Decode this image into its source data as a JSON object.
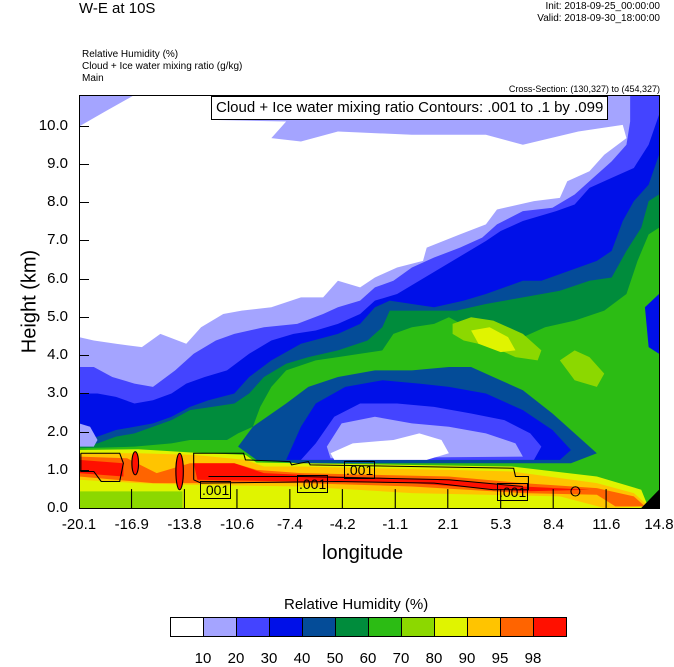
{
  "header": {
    "title": "W-E at 10S",
    "init": "Init: 2018-09-25_00:00:00",
    "valid": "Valid: 2018-09-30_18:00:00",
    "fields": [
      "Relative Humidity   (%)",
      "Cloud + Ice water mixing ratio   (g/kg)",
      "Main"
    ],
    "cross_section": "Cross-Section: (130,327) to (454,327)"
  },
  "chart_data": {
    "type": "contour",
    "title": "W-E at 10S",
    "contour_annotation": "Cloud + Ice water mixing ratio Contours: .001 to .1 by .099",
    "xlabel": "longitude",
    "ylabel": "Height (km)",
    "xlim": [
      -20.1,
      14.8
    ],
    "ylim": [
      0,
      10.8
    ],
    "x_ticks": [
      "-20.1",
      "-16.9",
      "-13.8",
      "-10.6",
      "-7.4",
      "-4.2",
      "-1.1",
      "2.1",
      "5.3",
      "8.4",
      "11.6",
      "14.8"
    ],
    "y_ticks": [
      "0.0",
      "1.0",
      "2.0",
      "3.0",
      "4.0",
      "5.0",
      "6.0",
      "7.0",
      "8.0",
      "9.0",
      "10.0"
    ],
    "contour_labels": [
      ".001",
      ".001",
      ".001",
      ".001"
    ],
    "colorbar": {
      "title": "Relative Humidity  (%)",
      "levels": [
        "10",
        "20",
        "30",
        "40",
        "50",
        "60",
        "70",
        "80",
        "90",
        "95",
        "98"
      ],
      "colors": [
        "#ffffff",
        "#a4a4ff",
        "#4444ff",
        "#0010e8",
        "#044c98",
        "#008c3c",
        "#2cbc14",
        "#8cd800",
        "#e0f400",
        "#ffc400",
        "#ff6400",
        "#ff1000"
      ]
    }
  }
}
